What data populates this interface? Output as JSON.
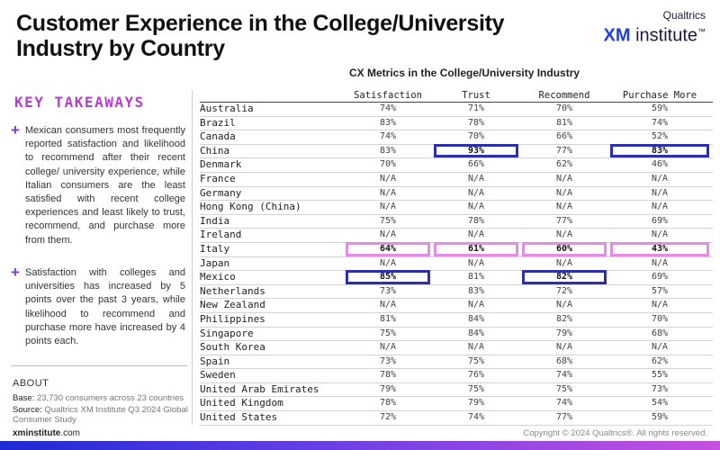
{
  "title": "Customer Experience in the College/University Industry by Country",
  "brand": {
    "top": "Qualtrics",
    "xm": "XM",
    "rest": " institute",
    "tm": "™"
  },
  "takeaways": {
    "heading": "KEY TAKEAWAYS",
    "items": [
      "Mexican consumers most frequently reported satisfaction and likelihood to recommend after their recent college/ university experience, while Italian consumers are the least satisfied with recent college experiences and least likely to trust, recommend, and purchase more from them.",
      "Satisfaction with colleges and universities has increased by 5 points over the past 3 years, while likelihood to recommend and purchase more have increased by 4 points each."
    ]
  },
  "about": {
    "heading": "ABOUT",
    "base_label": "Base:",
    "base_value": "23,730 consumers across 23 countries",
    "source_label": "Source:",
    "source_value": "Qualtrics XM Institute Q3 2024 Global Consumer Study"
  },
  "footer": {
    "site_bold": "xminstitute",
    "site_rest": ".com",
    "copyright": "Copyright © 2024 Qualtrics®. All rights reserved."
  },
  "table": {
    "title": "CX Metrics in the College/University Industry",
    "columns": [
      "Satisfaction",
      "Trust",
      "Recommend",
      "Purchase More"
    ],
    "rows": [
      {
        "country": "Australia",
        "values": [
          "74%",
          "71%",
          "70%",
          "59%"
        ]
      },
      {
        "country": "Brazil",
        "values": [
          "83%",
          "78%",
          "81%",
          "74%"
        ]
      },
      {
        "country": "Canada",
        "values": [
          "74%",
          "70%",
          "66%",
          "52%"
        ]
      },
      {
        "country": "China",
        "values": [
          "83%",
          "93%",
          "77%",
          "83%"
        ]
      },
      {
        "country": "Denmark",
        "values": [
          "70%",
          "66%",
          "62%",
          "46%"
        ]
      },
      {
        "country": "France",
        "values": [
          "N/A",
          "N/A",
          "N/A",
          "N/A"
        ]
      },
      {
        "country": "Germany",
        "values": [
          "N/A",
          "N/A",
          "N/A",
          "N/A"
        ]
      },
      {
        "country": "Hong Kong (China)",
        "values": [
          "N/A",
          "N/A",
          "N/A",
          "N/A"
        ]
      },
      {
        "country": "India",
        "values": [
          "75%",
          "78%",
          "77%",
          "69%"
        ]
      },
      {
        "country": "Ireland",
        "values": [
          "N/A",
          "N/A",
          "N/A",
          "N/A"
        ]
      },
      {
        "country": "Italy",
        "values": [
          "64%",
          "61%",
          "60%",
          "43%"
        ]
      },
      {
        "country": "Japan",
        "values": [
          "N/A",
          "N/A",
          "N/A",
          "N/A"
        ]
      },
      {
        "country": "Mexico",
        "values": [
          "85%",
          "81%",
          "82%",
          "69%"
        ]
      },
      {
        "country": "Netherlands",
        "values": [
          "73%",
          "83%",
          "72%",
          "57%"
        ]
      },
      {
        "country": "New Zealand",
        "values": [
          "N/A",
          "N/A",
          "N/A",
          "N/A"
        ]
      },
      {
        "country": "Philippines",
        "values": [
          "81%",
          "84%",
          "82%",
          "70%"
        ]
      },
      {
        "country": "Singapore",
        "values": [
          "75%",
          "84%",
          "79%",
          "68%"
        ]
      },
      {
        "country": "South Korea",
        "values": [
          "N/A",
          "N/A",
          "N/A",
          "N/A"
        ]
      },
      {
        "country": "Spain",
        "values": [
          "73%",
          "75%",
          "68%",
          "62%"
        ]
      },
      {
        "country": "Sweden",
        "values": [
          "78%",
          "76%",
          "74%",
          "55%"
        ]
      },
      {
        "country": "United Arab Emirates",
        "values": [
          "79%",
          "75%",
          "75%",
          "73%"
        ]
      },
      {
        "country": "United Kingdom",
        "values": [
          "78%",
          "79%",
          "74%",
          "54%"
        ]
      },
      {
        "country": "United States",
        "values": [
          "72%",
          "74%",
          "77%",
          "59%"
        ]
      }
    ],
    "highlights_max": [
      [
        3,
        1
      ],
      [
        3,
        3
      ],
      [
        12,
        0
      ],
      [
        12,
        2
      ]
    ],
    "highlight_min_row": 10
  },
  "colors": {
    "accent": "#b43ccf",
    "max_box": "#2b2fb0",
    "min_box": "#e38ce6"
  }
}
